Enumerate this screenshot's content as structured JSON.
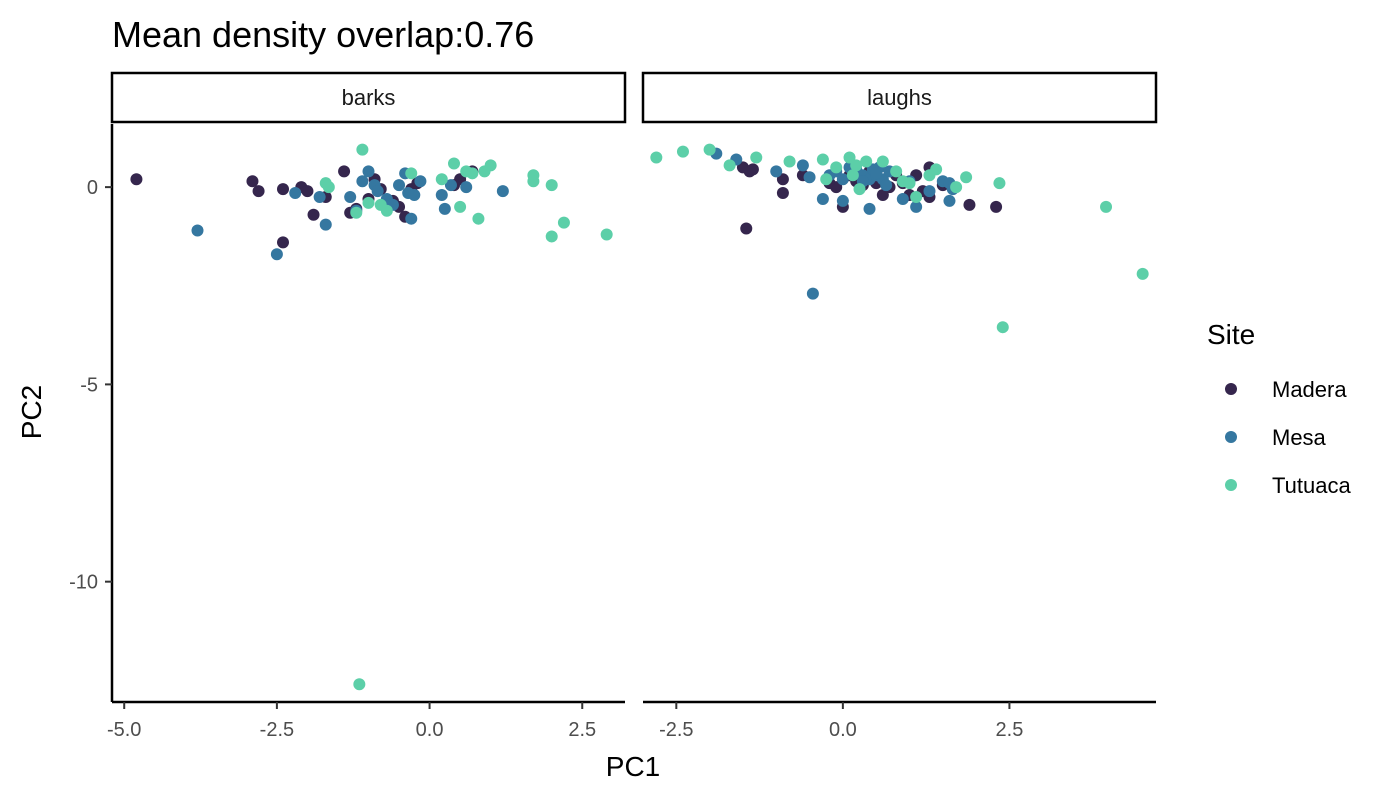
{
  "chart_data": {
    "type": "scatter",
    "title": "Mean density overlap:0.76",
    "xlabel": "PC1",
    "ylabel": "PC2",
    "facets": [
      {
        "name": "barks",
        "xlim": [
          -5.2,
          3.2
        ],
        "xticks": [
          -5.0,
          -2.5,
          0.0,
          2.5
        ],
        "xtick_labels": [
          "-5.0",
          "-2.5",
          "0.0",
          "2.5"
        ],
        "series": [
          {
            "name": "Madera",
            "points": [
              [
                -4.8,
                0.2
              ],
              [
                -2.9,
                0.15
              ],
              [
                -2.8,
                -0.1
              ],
              [
                -2.4,
                -0.05
              ],
              [
                -2.1,
                0.0
              ],
              [
                -2.0,
                -0.1
              ],
              [
                -1.9,
                -0.7
              ],
              [
                -1.7,
                -0.25
              ],
              [
                -2.4,
                -1.4
              ],
              [
                -1.4,
                0.4
              ],
              [
                -1.3,
                -0.65
              ],
              [
                -1.2,
                -0.55
              ],
              [
                -1.0,
                -0.3
              ],
              [
                -0.9,
                0.2
              ],
              [
                -0.8,
                -0.05
              ],
              [
                -0.6,
                -0.35
              ],
              [
                -0.5,
                -0.5
              ],
              [
                -0.4,
                -0.75
              ],
              [
                -0.3,
                -0.05
              ],
              [
                -0.2,
                0.1
              ],
              [
                0.4,
                0.05
              ],
              [
                0.5,
                0.2
              ],
              [
                0.7,
                0.4
              ]
            ]
          },
          {
            "name": "Mesa",
            "points": [
              [
                -3.8,
                -1.1
              ],
              [
                -2.5,
                -1.7
              ],
              [
                -2.2,
                -0.15
              ],
              [
                -1.8,
                -0.25
              ],
              [
                -1.7,
                -0.95
              ],
              [
                -1.3,
                -0.25
              ],
              [
                -1.1,
                0.15
              ],
              [
                -1.0,
                0.4
              ],
              [
                -0.9,
                0.05
              ],
              [
                -0.85,
                -0.1
              ],
              [
                -0.7,
                -0.3
              ],
              [
                -0.6,
                -0.45
              ],
              [
                -0.5,
                0.05
              ],
              [
                -0.4,
                0.35
              ],
              [
                -0.35,
                -0.15
              ],
              [
                -0.3,
                -0.8
              ],
              [
                -0.25,
                -0.2
              ],
              [
                -0.15,
                0.15
              ],
              [
                0.2,
                -0.2
              ],
              [
                0.25,
                -0.55
              ],
              [
                0.35,
                0.05
              ],
              [
                0.6,
                0.0
              ],
              [
                1.2,
                -0.1
              ],
              [
                -1.2,
                -0.6
              ],
              [
                -0.7,
                -0.5
              ]
            ]
          },
          {
            "name": "Tutuaca",
            "points": [
              [
                -1.7,
                0.1
              ],
              [
                -1.65,
                0.0
              ],
              [
                -1.1,
                0.95
              ],
              [
                -1.15,
                -12.6
              ],
              [
                -1.0,
                -0.4
              ],
              [
                -0.8,
                -0.45
              ],
              [
                -0.7,
                -0.6
              ],
              [
                -0.3,
                0.35
              ],
              [
                0.2,
                0.2
              ],
              [
                0.4,
                0.6
              ],
              [
                0.5,
                -0.5
              ],
              [
                0.7,
                0.35
              ],
              [
                0.8,
                -0.8
              ],
              [
                0.9,
                0.4
              ],
              [
                1.0,
                0.55
              ],
              [
                1.7,
                0.3
              ],
              [
                1.7,
                0.15
              ],
              [
                2.0,
                0.05
              ],
              [
                2.2,
                -0.9
              ],
              [
                2.0,
                -1.25
              ],
              [
                2.9,
                -1.2
              ],
              [
                -1.2,
                -0.65
              ],
              [
                0.6,
                0.4
              ]
            ]
          }
        ]
      },
      {
        "name": "laughs",
        "xlim": [
          -3.0,
          4.7
        ],
        "xticks": [
          -2.5,
          0.0,
          2.5
        ],
        "xtick_labels": [
          "-2.5",
          "0.0",
          "2.5"
        ],
        "series": [
          {
            "name": "Madera",
            "points": [
              [
                -1.5,
                0.5
              ],
              [
                -1.4,
                0.4
              ],
              [
                -1.35,
                0.45
              ],
              [
                -1.45,
                -1.05
              ],
              [
                -0.9,
                -0.15
              ],
              [
                -0.9,
                0.2
              ],
              [
                -0.6,
                0.3
              ],
              [
                -0.2,
                0.1
              ],
              [
                -0.1,
                0.0
              ],
              [
                0.0,
                -0.5
              ],
              [
                0.1,
                0.3
              ],
              [
                0.2,
                0.15
              ],
              [
                0.3,
                0.05
              ],
              [
                0.5,
                0.1
              ],
              [
                0.6,
                -0.2
              ],
              [
                0.7,
                0.0
              ],
              [
                0.8,
                0.3
              ],
              [
                0.9,
                0.1
              ],
              [
                1.0,
                -0.2
              ],
              [
                1.1,
                0.3
              ],
              [
                1.2,
                -0.1
              ],
              [
                1.3,
                0.5
              ],
              [
                1.3,
                -0.25
              ],
              [
                1.5,
                0.05
              ],
              [
                1.9,
                -0.45
              ],
              [
                2.3,
                -0.5
              ],
              [
                0.4,
                0.4
              ]
            ]
          },
          {
            "name": "Mesa",
            "points": [
              [
                -1.9,
                0.85
              ],
              [
                -1.6,
                0.7
              ],
              [
                -1.0,
                0.4
              ],
              [
                -0.6,
                0.55
              ],
              [
                -0.5,
                0.25
              ],
              [
                -0.3,
                -0.3
              ],
              [
                -0.2,
                0.3
              ],
              [
                -0.1,
                0.4
              ],
              [
                0.0,
                0.2
              ],
              [
                0.0,
                -0.35
              ],
              [
                0.1,
                0.5
              ],
              [
                0.2,
                0.45
              ],
              [
                0.3,
                0.3
              ],
              [
                0.4,
                0.2
              ],
              [
                0.4,
                -0.55
              ],
              [
                0.45,
                0.45
              ],
              [
                0.5,
                0.3
              ],
              [
                0.55,
                0.5
              ],
              [
                0.6,
                0.2
              ],
              [
                0.65,
                0.05
              ],
              [
                0.7,
                0.4
              ],
              [
                0.9,
                -0.3
              ],
              [
                1.0,
                0.15
              ],
              [
                1.1,
                -0.5
              ],
              [
                1.3,
                -0.1
              ],
              [
                1.5,
                0.15
              ],
              [
                1.6,
                0.1
              ],
              [
                1.6,
                -0.35
              ],
              [
                1.65,
                -0.05
              ],
              [
                -0.45,
                -2.7
              ],
              [
                0.3,
                0.15
              ],
              [
                0.5,
                0.35
              ]
            ]
          },
          {
            "name": "Tutuaca",
            "points": [
              [
                -2.8,
                0.75
              ],
              [
                -2.4,
                0.9
              ],
              [
                -2.0,
                0.95
              ],
              [
                -1.7,
                0.55
              ],
              [
                -1.3,
                0.75
              ],
              [
                -0.8,
                0.65
              ],
              [
                -0.3,
                0.7
              ],
              [
                -0.25,
                0.2
              ],
              [
                -0.1,
                0.5
              ],
              [
                0.1,
                0.75
              ],
              [
                0.2,
                0.55
              ],
              [
                0.25,
                -0.05
              ],
              [
                0.35,
                0.65
              ],
              [
                0.6,
                0.65
              ],
              [
                0.8,
                0.4
              ],
              [
                0.9,
                0.15
              ],
              [
                1.0,
                0.1
              ],
              [
                1.1,
                -0.25
              ],
              [
                1.3,
                0.3
              ],
              [
                1.4,
                0.45
              ],
              [
                1.7,
                0.0
              ],
              [
                1.85,
                0.25
              ],
              [
                2.35,
                0.1
              ],
              [
                3.95,
                -0.5
              ],
              [
                4.5,
                -2.2
              ],
              [
                2.4,
                -3.55
              ],
              [
                0.15,
                0.3
              ]
            ]
          }
        ]
      }
    ],
    "ylim": [
      -13.05,
      1.6
    ],
    "yticks": [
      0,
      -5,
      -10
    ],
    "ytick_labels": [
      "0",
      "-5",
      "-10"
    ],
    "legend": {
      "title": "Site",
      "position": "right",
      "entries": [
        {
          "name": "Madera",
          "color": "#35264d"
        },
        {
          "name": "Mesa",
          "color": "#3577a0"
        },
        {
          "name": "Tutuaca",
          "color": "#5ccfa8"
        }
      ]
    },
    "grid": false
  }
}
